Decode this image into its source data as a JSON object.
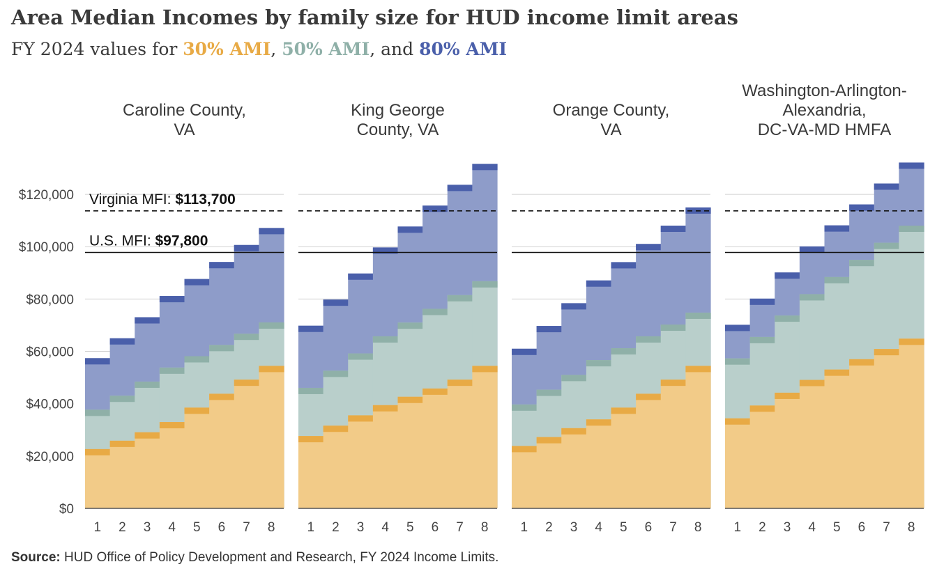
{
  "title": "Area Median Incomes by family size for HUD income limit areas",
  "subtitle": {
    "prefix": "FY 2024 values for ",
    "k30": "30% AMI",
    "sep1": ", ",
    "k50": "50% AMI",
    "sep2": ", and ",
    "k80": "80% AMI"
  },
  "source": {
    "label": "Source:",
    "text": " HUD Office of Policy Development and Research, FY 2024 Income Limits."
  },
  "colors": {
    "ami30_fill": "#f2cb88",
    "ami30_cap": "#e8aa45",
    "ami50_fill": "#b9cfcb",
    "ami50_cap": "#8fb0a8",
    "ami80_fill": "#8e9cc9",
    "ami80_cap": "#4a5faa",
    "grid": "#d0d0d0"
  },
  "chart_data": {
    "type": "area",
    "y_ticks": [
      "$0",
      "$20,000",
      "$40,000",
      "$60,000",
      "$80,000",
      "$100,000",
      "$120,000"
    ],
    "y_tick_values": [
      0,
      20000,
      40000,
      60000,
      80000,
      100000,
      120000
    ],
    "ylim": [
      0,
      132000
    ],
    "x_ticks": [
      "1",
      "2",
      "3",
      "4",
      "5",
      "6",
      "7",
      "8"
    ],
    "reference_lines": [
      {
        "label": "Virginia MFI: ",
        "value_label": "$113,700",
        "value": 113700,
        "style": "dashed"
      },
      {
        "label": "U.S. MFI: ",
        "value_label": "$97,800",
        "value": 97800,
        "style": "solid"
      }
    ],
    "panels": [
      {
        "name_lines": [
          "Caroline County,",
          "VA"
        ],
        "series": [
          {
            "name": "30% AMI",
            "values": [
              22650,
              25850,
              29080,
              32980,
              38500,
              43800,
              49200,
              54450
            ]
          },
          {
            "name": "50% AMI",
            "values": [
              37700,
              43050,
              48450,
              53800,
              58150,
              62450,
              66750,
              71050
            ]
          },
          {
            "name": "80% AMI",
            "values": [
              57400,
              65000,
              73050,
              81150,
              87650,
              94150,
              100650,
              107150
            ]
          }
        ]
      },
      {
        "name_lines": [
          "King George",
          "County, VA"
        ],
        "series": [
          {
            "name": "30% AMI",
            "values": [
              27650,
              31600,
              35550,
              39450,
              42650,
              45800,
              49200,
              54450
            ]
          },
          {
            "name": "50% AMI",
            "values": [
              46050,
              52600,
              59200,
              65750,
              71000,
              76250,
              81500,
              86800
            ]
          },
          {
            "name": "80% AMI",
            "values": [
              69800,
              79800,
              89750,
              99700,
              107700,
              115700,
              123650,
              131650
            ]
          }
        ]
      },
      {
        "name_lines": [
          "Orange County,",
          "VA"
        ],
        "series": [
          {
            "name": "30% AMI",
            "values": [
              23850,
              27250,
              30650,
              34000,
              38500,
              43800,
              49200,
              54450
            ]
          },
          {
            "name": "50% AMI",
            "values": [
              39700,
              45350,
              51000,
              56650,
              61200,
              65750,
              70250,
              74800
            ]
          },
          {
            "name": "80% AMI",
            "values": [
              61000,
              69700,
              78400,
              87100,
              94100,
              101050,
              108050,
              115000
            ]
          }
        ]
      },
      {
        "name_lines": [
          "Washington-Arlington-",
          "Alexandria,",
          "DC-VA-MD HMFA"
        ],
        "series": [
          {
            "name": "30% AMI",
            "values": [
              34400,
              39300,
              44200,
              49100,
              53050,
              57000,
              60900,
              64850
            ]
          },
          {
            "name": "50% AMI",
            "values": [
              57300,
              65500,
              73700,
              81850,
              88400,
              94950,
              101500,
              108050
            ]
          },
          {
            "name": "80% AMI",
            "values": [
              70150,
              80150,
              90150,
              100100,
              108150,
              116150,
              124150,
              132150
            ]
          }
        ]
      }
    ]
  }
}
